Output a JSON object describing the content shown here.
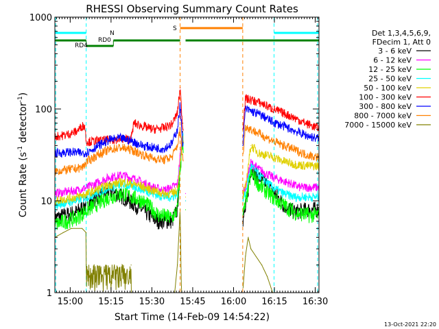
{
  "chart_data": {
    "type": "line",
    "title": "RHESSI Observing Summary Count Rates",
    "xlabel": "Start Time (14-Feb-09 14:54:22)",
    "ylabel": "Count Rate (s",
    "ylabel_sup": "-1",
    "ylabel_end": " detector",
    "ylabel_sup2": "-1",
    "ylabel_close": ")",
    "x_unit": "minutes after 14:54:22",
    "xlim": [
      0,
      97
    ],
    "ylim": [
      1,
      1000
    ],
    "y_scale": "log",
    "x_ticks": [
      "15:00",
      "15:15",
      "15:30",
      "15:45",
      "16:00",
      "16:15",
      "16:30"
    ],
    "x_tick_values": [
      5.63,
      20.63,
      35.63,
      50.63,
      65.63,
      80.63,
      95.63
    ],
    "y_ticks": [
      "1",
      "10",
      "100",
      "1000"
    ],
    "y_tick_values": [
      1,
      10,
      100,
      1000
    ],
    "legend_header": [
      "Det 1,3,4,5,6,9,",
      "FDecim 1, Att 0"
    ],
    "timestamp": "13-Oct-2021 22:20",
    "annotations": {
      "night_label": "N",
      "saa_label": "S",
      "rd0_label": "RD0",
      "rd4_label": "RD4"
    },
    "bars": {
      "night": [
        [
          0,
          11.5
        ],
        [
          80.5,
          97
        ]
      ],
      "saa": [
        [
          46,
          69
        ]
      ],
      "rd0": [
        [
          0,
          11.5
        ],
        [
          21.5,
          46
        ],
        [
          48,
          97
        ]
      ],
      "rd4": [
        [
          11.5,
          21.5
        ]
      ]
    },
    "vlines_cyan": [
      0.3,
      11.5,
      80.5,
      96.5
    ],
    "vlines_orange": [
      46,
      69
    ],
    "series": [
      {
        "name": "3 - 6 keV",
        "color": "#000000",
        "points": [
          [
            0,
            6.5
          ],
          [
            8,
            7.5
          ],
          [
            12,
            9.5
          ],
          [
            20,
            13
          ],
          [
            25,
            11
          ],
          [
            32,
            8
          ],
          [
            36,
            6.5
          ],
          [
            38,
            6
          ],
          [
            43,
            6
          ],
          [
            45,
            8
          ],
          [
            47,
            70
          ],
          [
            48,
            10
          ],
          [
            69,
            6
          ],
          [
            70,
            8
          ],
          [
            72,
            22
          ],
          [
            75,
            18
          ],
          [
            80,
            13
          ],
          [
            84,
            9
          ],
          [
            88,
            7.5
          ],
          [
            93,
            8
          ],
          [
            96,
            8
          ]
        ]
      },
      {
        "name": "6 - 12 keV",
        "color": "#ff00ff",
        "points": [
          [
            0,
            12
          ],
          [
            8,
            13
          ],
          [
            12,
            14
          ],
          [
            20,
            18
          ],
          [
            25,
            19
          ],
          [
            30,
            17
          ],
          [
            36,
            14
          ],
          [
            40,
            13
          ],
          [
            43,
            14
          ],
          [
            45,
            15
          ],
          [
            47,
            60
          ],
          [
            48,
            12
          ],
          [
            69,
            12
          ],
          [
            70,
            14
          ],
          [
            72,
            26
          ],
          [
            75,
            22
          ],
          [
            80,
            18
          ],
          [
            85,
            16
          ],
          [
            90,
            14
          ],
          [
            96,
            14
          ]
        ]
      },
      {
        "name": "12 - 25 keV",
        "color": "#00ff00",
        "points": [
          [
            0,
            5.5
          ],
          [
            8,
            6.5
          ],
          [
            12,
            8
          ],
          [
            20,
            11
          ],
          [
            25,
            12
          ],
          [
            32,
            10
          ],
          [
            36,
            8
          ],
          [
            38,
            7
          ],
          [
            43,
            6.5
          ],
          [
            45,
            8
          ],
          [
            47,
            50
          ],
          [
            48,
            8
          ],
          [
            69,
            7
          ],
          [
            70,
            9
          ],
          [
            72,
            20
          ],
          [
            75,
            15
          ],
          [
            80,
            11
          ],
          [
            84,
            9
          ],
          [
            88,
            7.5
          ],
          [
            93,
            7
          ],
          [
            96,
            7
          ]
        ]
      },
      {
        "name": "25 - 50 keV",
        "color": "#00ffff",
        "points": [
          [
            0,
            9
          ],
          [
            8,
            10
          ],
          [
            12,
            11
          ],
          [
            20,
            14
          ],
          [
            25,
            15
          ],
          [
            30,
            14
          ],
          [
            36,
            12
          ],
          [
            40,
            11
          ],
          [
            43,
            11
          ],
          [
            45,
            12
          ],
          [
            47,
            55
          ],
          [
            48,
            10
          ],
          [
            69,
            10
          ],
          [
            70,
            12
          ],
          [
            72,
            24
          ],
          [
            75,
            19
          ],
          [
            80,
            14
          ],
          [
            84,
            12
          ],
          [
            88,
            11
          ],
          [
            93,
            11
          ],
          [
            96,
            11
          ]
        ]
      },
      {
        "name": "50 - 100 keV",
        "color": "#e0d000",
        "points": [
          [
            0,
            10
          ],
          [
            8,
            11
          ],
          [
            12,
            12
          ],
          [
            20,
            15
          ],
          [
            25,
            16
          ],
          [
            30,
            15
          ],
          [
            36,
            13
          ],
          [
            40,
            12
          ],
          [
            43,
            12
          ],
          [
            45,
            13
          ],
          [
            47,
            50
          ],
          [
            48,
            11
          ],
          [
            69,
            11
          ],
          [
            70,
            14
          ],
          [
            72,
            40
          ],
          [
            75,
            33
          ],
          [
            80,
            30
          ],
          [
            84,
            27
          ],
          [
            88,
            25
          ],
          [
            93,
            24
          ],
          [
            96,
            24
          ]
        ]
      },
      {
        "name": "100 - 300 keV",
        "color": "#ff0000",
        "points": [
          [
            0,
            50
          ],
          [
            4,
            52
          ],
          [
            8,
            57
          ],
          [
            10,
            65
          ],
          [
            11,
            66
          ],
          [
            11.5,
            45
          ],
          [
            12,
            44
          ],
          [
            20,
            46
          ],
          [
            25,
            47
          ],
          [
            28,
            47
          ],
          [
            29,
            70
          ],
          [
            32,
            65
          ],
          [
            36,
            60
          ],
          [
            40,
            62
          ],
          [
            43,
            68
          ],
          [
            45,
            90
          ],
          [
            46,
            170
          ],
          [
            47,
            60
          ],
          [
            69,
            60
          ],
          [
            70,
            130
          ],
          [
            72,
            125
          ],
          [
            76,
            115
          ],
          [
            80,
            100
          ],
          [
            84,
            90
          ],
          [
            88,
            80
          ],
          [
            92,
            70
          ],
          [
            96,
            63
          ]
        ]
      },
      {
        "name": "300 - 800 keV",
        "color": "#0000ff",
        "points": [
          [
            0,
            33
          ],
          [
            6,
            34
          ],
          [
            10,
            33
          ],
          [
            12,
            34
          ],
          [
            16,
            40
          ],
          [
            20,
            46
          ],
          [
            24,
            48
          ],
          [
            28,
            45
          ],
          [
            32,
            40
          ],
          [
            36,
            38
          ],
          [
            40,
            37
          ],
          [
            43,
            42
          ],
          [
            45,
            60
          ],
          [
            46,
            110
          ],
          [
            47,
            40
          ],
          [
            69,
            40
          ],
          [
            70,
            100
          ],
          [
            72,
            95
          ],
          [
            76,
            85
          ],
          [
            80,
            72
          ],
          [
            84,
            65
          ],
          [
            88,
            58
          ],
          [
            92,
            52
          ],
          [
            96,
            48
          ]
        ]
      },
      {
        "name": "800 - 7000 keV",
        "color": "#ff8000",
        "points": [
          [
            0,
            21
          ],
          [
            6,
            22
          ],
          [
            10,
            23
          ],
          [
            11,
            25
          ],
          [
            12,
            27
          ],
          [
            16,
            32
          ],
          [
            20,
            36
          ],
          [
            24,
            38
          ],
          [
            28,
            36
          ],
          [
            32,
            32
          ],
          [
            36,
            29
          ],
          [
            40,
            28
          ],
          [
            43,
            30
          ],
          [
            45,
            40
          ],
          [
            46,
            60
          ],
          [
            47,
            28
          ],
          [
            69,
            28
          ],
          [
            70,
            65
          ],
          [
            72,
            60
          ],
          [
            76,
            52
          ],
          [
            80,
            45
          ],
          [
            84,
            40
          ],
          [
            88,
            36
          ],
          [
            92,
            32
          ],
          [
            96,
            30
          ]
        ]
      },
      {
        "name": "7000 - 15000 keV",
        "color": "#808000",
        "points": [
          [
            0,
            4
          ],
          [
            3,
            4.5
          ],
          [
            6,
            5
          ],
          [
            10,
            5
          ],
          [
            11.5,
            4.5
          ],
          [
            11.5,
            2
          ],
          [
            28,
            2
          ],
          [
            28,
            1
          ],
          [
            44,
            1
          ],
          [
            45,
            2
          ],
          [
            46,
            8
          ],
          [
            46.5,
            1
          ],
          [
            69,
            1
          ],
          [
            70,
            2.5
          ],
          [
            71,
            4
          ],
          [
            72,
            3
          ],
          [
            76,
            2
          ],
          [
            78,
            1.5
          ],
          [
            80,
            1
          ],
          [
            96,
            1
          ]
        ]
      }
    ]
  }
}
